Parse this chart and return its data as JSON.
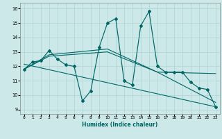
{
  "xlabel": "Humidex (Indice chaleur)",
  "xlim": [
    -0.5,
    23.5
  ],
  "ylim": [
    8.7,
    16.4
  ],
  "xtick_vals": [
    0,
    1,
    2,
    3,
    4,
    5,
    6,
    7,
    8,
    9,
    10,
    11,
    12,
    13,
    14,
    15,
    16,
    17,
    18,
    19,
    20,
    21,
    22,
    23
  ],
  "ytick_vals": [
    9,
    10,
    11,
    12,
    13,
    14,
    15,
    16
  ],
  "bg_color": "#cce8e8",
  "line_color": "#006666",
  "grid_color": "#add4d4",
  "main_line_x": [
    0,
    1,
    2,
    3,
    4,
    5,
    6,
    7,
    8,
    9,
    10,
    11,
    12,
    13,
    14,
    15,
    16,
    17,
    18,
    19,
    20,
    21,
    22,
    23
  ],
  "main_line_y": [
    11.8,
    12.3,
    12.4,
    13.1,
    12.5,
    12.1,
    12.0,
    9.6,
    10.3,
    13.3,
    15.0,
    15.3,
    11.0,
    10.7,
    14.8,
    15.8,
    12.0,
    11.6,
    11.6,
    11.6,
    10.9,
    10.5,
    10.4,
    9.2
  ],
  "trend_line1_x": [
    0,
    23
  ],
  "trend_line1_y": [
    12.15,
    9.2
  ],
  "trend_line2_x": [
    0,
    3,
    10,
    16,
    23
  ],
  "trend_line2_y": [
    11.8,
    12.8,
    13.2,
    11.6,
    11.5
  ],
  "trend_line3_x": [
    0,
    3,
    10,
    16,
    23
  ],
  "trend_line3_y": [
    11.8,
    12.7,
    13.0,
    11.6,
    9.5
  ]
}
